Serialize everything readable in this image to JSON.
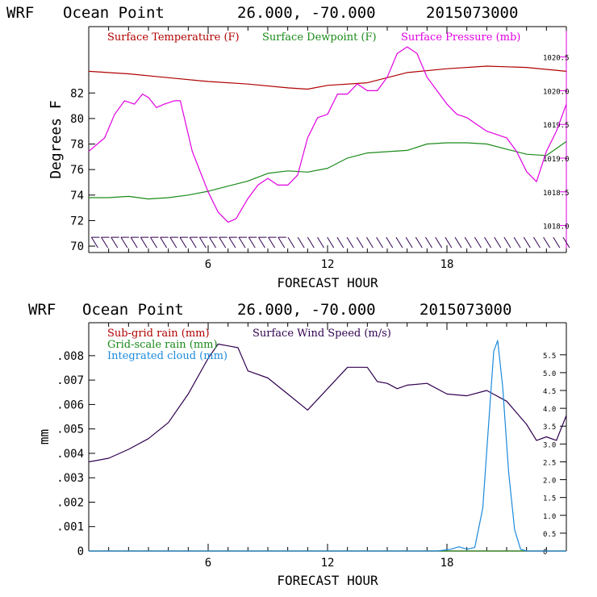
{
  "chart_data": [
    {
      "type": "line",
      "title_parts": [
        "WRF",
        "Ocean Point",
        "26.000, -70.000",
        "2015073000"
      ],
      "xlabel": "FORECAST HOUR",
      "ylabel": "Degrees F",
      "xlim": [
        0,
        24
      ],
      "ylim": [
        69.5,
        87.2
      ],
      "y2lim": [
        1017.6,
        1020.95
      ],
      "xticks": [
        0,
        1,
        2,
        3,
        4,
        5,
        6,
        7,
        8,
        9,
        10,
        11,
        12,
        13,
        14,
        15,
        16,
        17,
        18,
        19,
        20,
        21,
        22,
        23,
        24
      ],
      "xtick_labels": [
        "6",
        "12",
        "18"
      ],
      "xtick_label_values": [
        6,
        12,
        18
      ],
      "yticks": [
        70,
        72,
        74,
        76,
        78,
        80,
        82
      ],
      "ytick_labels": [
        "70",
        "72",
        "74",
        "76",
        "78",
        "80",
        "82"
      ],
      "y2ticks": [
        1018.0,
        1018.5,
        1019.0,
        1019.5,
        1020.0,
        1020.5
      ],
      "y2tick_labels": [
        "1018.0",
        "1018.5",
        "1019.0",
        "1019.5",
        "1020.0",
        "1020.5"
      ],
      "legend_placement": "top-left",
      "series": [
        {
          "name": "Surface Temperature (F)",
          "color": "#b00000",
          "axis": "left",
          "points": [
            [
              0,
              83.7
            ],
            [
              2,
              83.5
            ],
            [
              4,
              83.2
            ],
            [
              6,
              82.9
            ],
            [
              8,
              82.7
            ],
            [
              10,
              82.4
            ],
            [
              11,
              82.3
            ],
            [
              12,
              82.6
            ],
            [
              14,
              82.8
            ],
            [
              16,
              83.6
            ],
            [
              18,
              83.9
            ],
            [
              20,
              84.1
            ],
            [
              22,
              84.0
            ],
            [
              24,
              83.7
            ]
          ]
        },
        {
          "name": "Surface Dewpoint (F)",
          "color": "#1a8a1a",
          "axis": "left",
          "points": [
            [
              0,
              73.8
            ],
            [
              1,
              73.8
            ],
            [
              2,
              73.9
            ],
            [
              3,
              73.7
            ],
            [
              4,
              73.8
            ],
            [
              5,
              74.0
            ],
            [
              6,
              74.3
            ],
            [
              7,
              74.7
            ],
            [
              8,
              75.1
            ],
            [
              9,
              75.7
            ],
            [
              10,
              75.9
            ],
            [
              11,
              75.8
            ],
            [
              12,
              76.1
            ],
            [
              13,
              76.9
            ],
            [
              14,
              77.3
            ],
            [
              15,
              77.4
            ],
            [
              16,
              77.5
            ],
            [
              17,
              78.0
            ],
            [
              18,
              78.1
            ],
            [
              19,
              78.1
            ],
            [
              20,
              78.0
            ],
            [
              21,
              77.6
            ],
            [
              22,
              77.2
            ],
            [
              23,
              77.1
            ],
            [
              24,
              78.2
            ]
          ]
        },
        {
          "name": "Surface Pressure (mb)",
          "color": "#e000e0",
          "axis": "right",
          "points": [
            [
              0,
              1019.1
            ],
            [
              0.8,
              1019.3
            ],
            [
              1.3,
              1019.65
            ],
            [
              1.8,
              1019.85
            ],
            [
              2.3,
              1019.8
            ],
            [
              2.7,
              1019.95
            ],
            [
              3.0,
              1019.9
            ],
            [
              3.4,
              1019.75
            ],
            [
              3.8,
              1019.8
            ],
            [
              4.3,
              1019.85
            ],
            [
              4.6,
              1019.85
            ],
            [
              5.2,
              1019.1
            ],
            [
              6.0,
              1018.5
            ],
            [
              6.5,
              1018.2
            ],
            [
              7.0,
              1018.05
            ],
            [
              7.4,
              1018.1
            ],
            [
              8.0,
              1018.4
            ],
            [
              8.5,
              1018.6
            ],
            [
              9.0,
              1018.7
            ],
            [
              9.5,
              1018.6
            ],
            [
              10.0,
              1018.6
            ],
            [
              10.5,
              1018.75
            ],
            [
              11.0,
              1019.3
            ],
            [
              11.5,
              1019.6
            ],
            [
              12.0,
              1019.65
            ],
            [
              12.5,
              1019.95
            ],
            [
              13.0,
              1019.95
            ],
            [
              13.5,
              1020.1
            ],
            [
              14.0,
              1020.0
            ],
            [
              14.5,
              1020.0
            ],
            [
              15.0,
              1020.2
            ],
            [
              15.5,
              1020.55
            ],
            [
              16.0,
              1020.65
            ],
            [
              16.5,
              1020.55
            ],
            [
              17.0,
              1020.2
            ],
            [
              17.5,
              1020.0
            ],
            [
              18.0,
              1019.8
            ],
            [
              18.5,
              1019.65
            ],
            [
              19.0,
              1019.6
            ],
            [
              19.5,
              1019.5
            ],
            [
              20.0,
              1019.4
            ],
            [
              21.0,
              1019.3
            ],
            [
              21.5,
              1019.1
            ],
            [
              22.0,
              1018.8
            ],
            [
              22.5,
              1018.65
            ],
            [
              23.0,
              1019.1
            ],
            [
              23.5,
              1019.4
            ],
            [
              24.0,
              1019.8
            ]
          ]
        }
      ],
      "wind_barbs": {
        "x_start": 0.3,
        "x_end": 24,
        "count": 49,
        "value": 70.25
      }
    },
    {
      "type": "line",
      "title_parts": [
        "WRF",
        "Ocean Point",
        "26.000, -70.000",
        "2015073000"
      ],
      "xlabel": "FORECAST HOUR",
      "ylabel": "mm",
      "xlim": [
        0,
        24
      ],
      "ylim": [
        0,
        0.00935
      ],
      "y2lim": [
        0,
        6.4
      ],
      "xticks": [
        0,
        1,
        2,
        3,
        4,
        5,
        6,
        7,
        8,
        9,
        10,
        11,
        12,
        13,
        14,
        15,
        16,
        17,
        18,
        19,
        20,
        21,
        22,
        23,
        24
      ],
      "xtick_labels": [
        "6",
        "12",
        "18"
      ],
      "xtick_label_values": [
        6,
        12,
        18
      ],
      "yticks": [
        0,
        0.001,
        0.002,
        0.003,
        0.004,
        0.005,
        0.006,
        0.007,
        0.008
      ],
      "ytick_labels": [
        "0",
        ".001",
        ".002",
        ".003",
        ".004",
        ".005",
        ".006",
        ".007",
        ".008"
      ],
      "y2ticks": [
        0,
        0.5,
        1.0,
        1.5,
        2.0,
        2.5,
        3.0,
        3.5,
        4.0,
        4.5,
        5.0,
        5.5
      ],
      "y2tick_labels": [
        "0",
        "0.5",
        "1.0",
        "1.5",
        "2.0",
        "2.5",
        "3.0",
        "3.5",
        "4.0",
        "4.5",
        "5.0",
        "5.5"
      ],
      "legend_placement": "top-left",
      "series": [
        {
          "name": "Sub-grid rain (mm)",
          "color": "#b00000",
          "axis": "left",
          "points": [
            [
              0,
              0
            ],
            [
              24,
              0
            ]
          ]
        },
        {
          "name": "Grid-scale rain (mm)",
          "color": "#1a8a1a",
          "axis": "left",
          "points": [
            [
              0,
              0
            ],
            [
              24,
              0
            ]
          ]
        },
        {
          "name": "Surface Wind Speed (m/s)",
          "color": "#300050",
          "axis": "right",
          "points": [
            [
              0,
              2.5
            ],
            [
              1,
              2.6
            ],
            [
              2,
              2.85
            ],
            [
              3,
              3.15
            ],
            [
              4,
              3.6
            ],
            [
              5,
              4.4
            ],
            [
              6,
              5.4
            ],
            [
              6.5,
              5.8
            ],
            [
              7,
              5.75
            ],
            [
              7.5,
              5.7
            ],
            [
              8,
              5.05
            ],
            [
              9,
              4.85
            ],
            [
              10,
              4.4
            ],
            [
              11,
              3.95
            ],
            [
              12,
              4.55
            ],
            [
              13,
              5.15
            ],
            [
              14,
              5.15
            ],
            [
              14.5,
              4.75
            ],
            [
              15,
              4.7
            ],
            [
              15.5,
              4.55
            ],
            [
              16,
              4.65
            ],
            [
              17,
              4.7
            ],
            [
              18,
              4.4
            ],
            [
              19,
              4.35
            ],
            [
              20,
              4.5
            ],
            [
              21,
              4.2
            ],
            [
              22,
              3.55
            ],
            [
              22.5,
              3.1
            ],
            [
              23,
              3.2
            ],
            [
              23.5,
              3.1
            ],
            [
              24,
              3.8
            ]
          ]
        },
        {
          "name": "Integrated cloud (mm)",
          "color": "#1a8adc",
          "axis": "right",
          "points": [
            [
              0,
              0
            ],
            [
              17.5,
              0
            ],
            [
              18.2,
              0.05
            ],
            [
              18.6,
              0.12
            ],
            [
              19.0,
              0.05
            ],
            [
              19.4,
              0.1
            ],
            [
              19.8,
              1.2
            ],
            [
              20.1,
              3.6
            ],
            [
              20.35,
              5.6
            ],
            [
              20.55,
              5.9
            ],
            [
              20.8,
              4.6
            ],
            [
              21.1,
              2.2
            ],
            [
              21.4,
              0.6
            ],
            [
              21.7,
              0.05
            ],
            [
              22.0,
              0
            ],
            [
              24,
              0
            ]
          ]
        }
      ]
    }
  ]
}
